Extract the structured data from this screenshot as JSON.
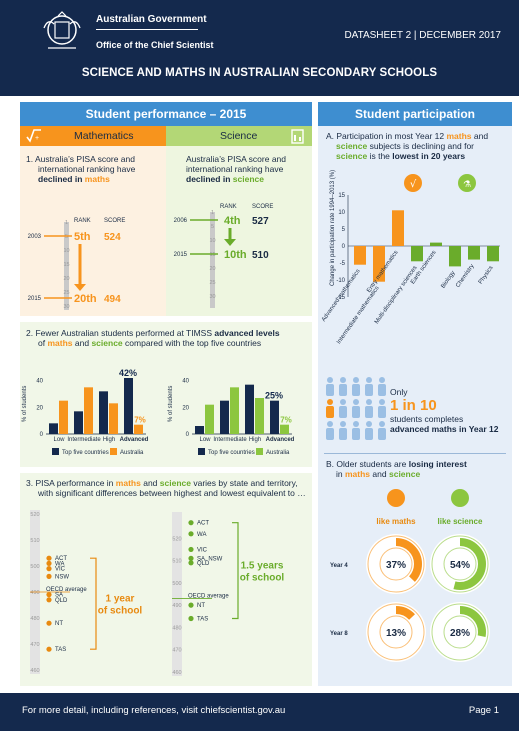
{
  "header": {
    "gov": "Australian Government",
    "office": "Office of the Chief Scientist",
    "datasheet": "DATASHEET 2 | DECEMBER 2017",
    "title": "SCIENCE AND MATHS IN AUSTRALIAN SECONDARY SCHOOLS"
  },
  "left": {
    "title": "Student performance – 2015",
    "tab_maths": "Mathematics",
    "tab_science": "Science",
    "pisa": {
      "maths_text_a": "1.  Australia’s PISA score and",
      "maths_text_b": "international ranking have",
      "maths_text_c": "declined in",
      "maths_word": "maths",
      "science_text_a": "Australia’s PISA score and",
      "science_text_b": "international ranking have",
      "science_text_c": "declined in",
      "science_word": "science",
      "rank_label": "RANK",
      "score_label": "SCORE",
      "maths": [
        {
          "year": "2003",
          "rank": "5th",
          "score": "524"
        },
        {
          "year": "2015",
          "rank": "20th",
          "score": "494"
        }
      ],
      "science": [
        {
          "year": "2006",
          "rank": "4th",
          "score": "527"
        },
        {
          "year": "2015",
          "rank": "10th",
          "score": "510"
        }
      ],
      "scale_ticks": [
        "1",
        "5",
        "10",
        "15",
        "20",
        "25",
        "30"
      ]
    },
    "timss": {
      "heading_a": "2.  Fewer Australian students performed at TIMSS",
      "heading_adv": "advanced levels",
      "heading_b": "of",
      "heading_maths": "maths",
      "heading_and": "and",
      "heading_science": "science",
      "heading_c": "compared with the top five countries",
      "ylabel": "% of students",
      "categories": [
        "Low",
        "Intermediate",
        "High",
        "Advanced"
      ],
      "maths_top5": [
        8,
        17,
        32,
        42
      ],
      "maths_aus": [
        25,
        35,
        23,
        7
      ],
      "science_top5": [
        6,
        25,
        37,
        25
      ],
      "science_aus": [
        22,
        35,
        27,
        7
      ],
      "maths_adv_top": "42%",
      "maths_adv_aus": "7%",
      "science_adv_top": "25%",
      "science_adv_aus": "7%",
      "legend_top5": "Top five countries",
      "legend_aus": "Australia",
      "yticks": [
        "0",
        "20",
        "40"
      ]
    },
    "states": {
      "heading_a": "3.  PISA performance in",
      "heading_maths": "maths",
      "heading_and": "and",
      "heading_science": "science",
      "heading_b": "varies by state and territory,",
      "heading_c": "with significant differences between highest and lowest equivalent to …",
      "yticks": [
        "520",
        "510",
        "500",
        "490",
        "480",
        "470",
        "460"
      ],
      "maths_labels": [
        "ACT",
        "WA",
        "VIC",
        "NSW",
        "OECD average",
        "SA",
        "QLD",
        "NT",
        "TAS"
      ],
      "maths_scores": [
        503,
        501,
        499,
        496,
        490,
        489,
        487,
        478,
        468
      ],
      "science_labels": [
        "ACT",
        "WA",
        "VIC",
        "SA, NSW",
        "QLD",
        "OECD average",
        "NT",
        "TAS"
      ],
      "science_scores": [
        527,
        522,
        515,
        511,
        509,
        493,
        490,
        484
      ],
      "maths_callout_a": "1 year",
      "maths_callout_b": "of school",
      "science_callout_a": "1.5 years",
      "science_callout_b": "of school"
    }
  },
  "right": {
    "title": "Student participation",
    "a_heading_1": "A.  Participation in most Year 12",
    "a_maths": "maths",
    "a_and": "and",
    "a_science": "science",
    "a_heading_2": "subjects is declining and for",
    "a_heading_3": "is the",
    "a_lowest": "lowest in 20 years",
    "ylabel": "Change in participation rate 1994–2013 (%)",
    "yticks": [
      "15",
      "10",
      "5",
      "0",
      "-5",
      "-10",
      "-15"
    ],
    "subjects": [
      "Advanced mathematics",
      "Intermediate mathematics",
      "Entry mathematics",
      "Multi-disciplinary sciences",
      "Earth sciences",
      "Biology",
      "Chemistry",
      "Physics"
    ],
    "changes": [
      -5.5,
      -10.5,
      10.5,
      -4.5,
      1,
      -6,
      -4,
      -4.5
    ],
    "only": "Only",
    "one_in_ten": "1 in 10",
    "completes_a": "students completes",
    "completes_b": "advanced maths in Year 12",
    "b_heading_a": "B.  Older students are",
    "b_losing": "losing interest",
    "b_heading_b": "in",
    "b_maths": "maths",
    "b_and": "and",
    "b_science": "science",
    "like_maths": "like maths",
    "like_science": "like science",
    "rows": [
      {
        "year": "Year 4",
        "maths": 37,
        "science": 54,
        "maths_label": "37%",
        "science_label": "54%"
      },
      {
        "year": "Year 8",
        "maths": 13,
        "science": 28,
        "maths_label": "13%",
        "science_label": "28%"
      }
    ]
  },
  "footer": {
    "more": "For more detail, including references, visit chiefscientist.gov.au",
    "page": "Page 1"
  },
  "colors": {
    "navy": "#14294d",
    "blue": "#3e8ed0",
    "orange": "#f7941d",
    "green": "#6aac2b",
    "lightgreen": "#b3d776"
  }
}
